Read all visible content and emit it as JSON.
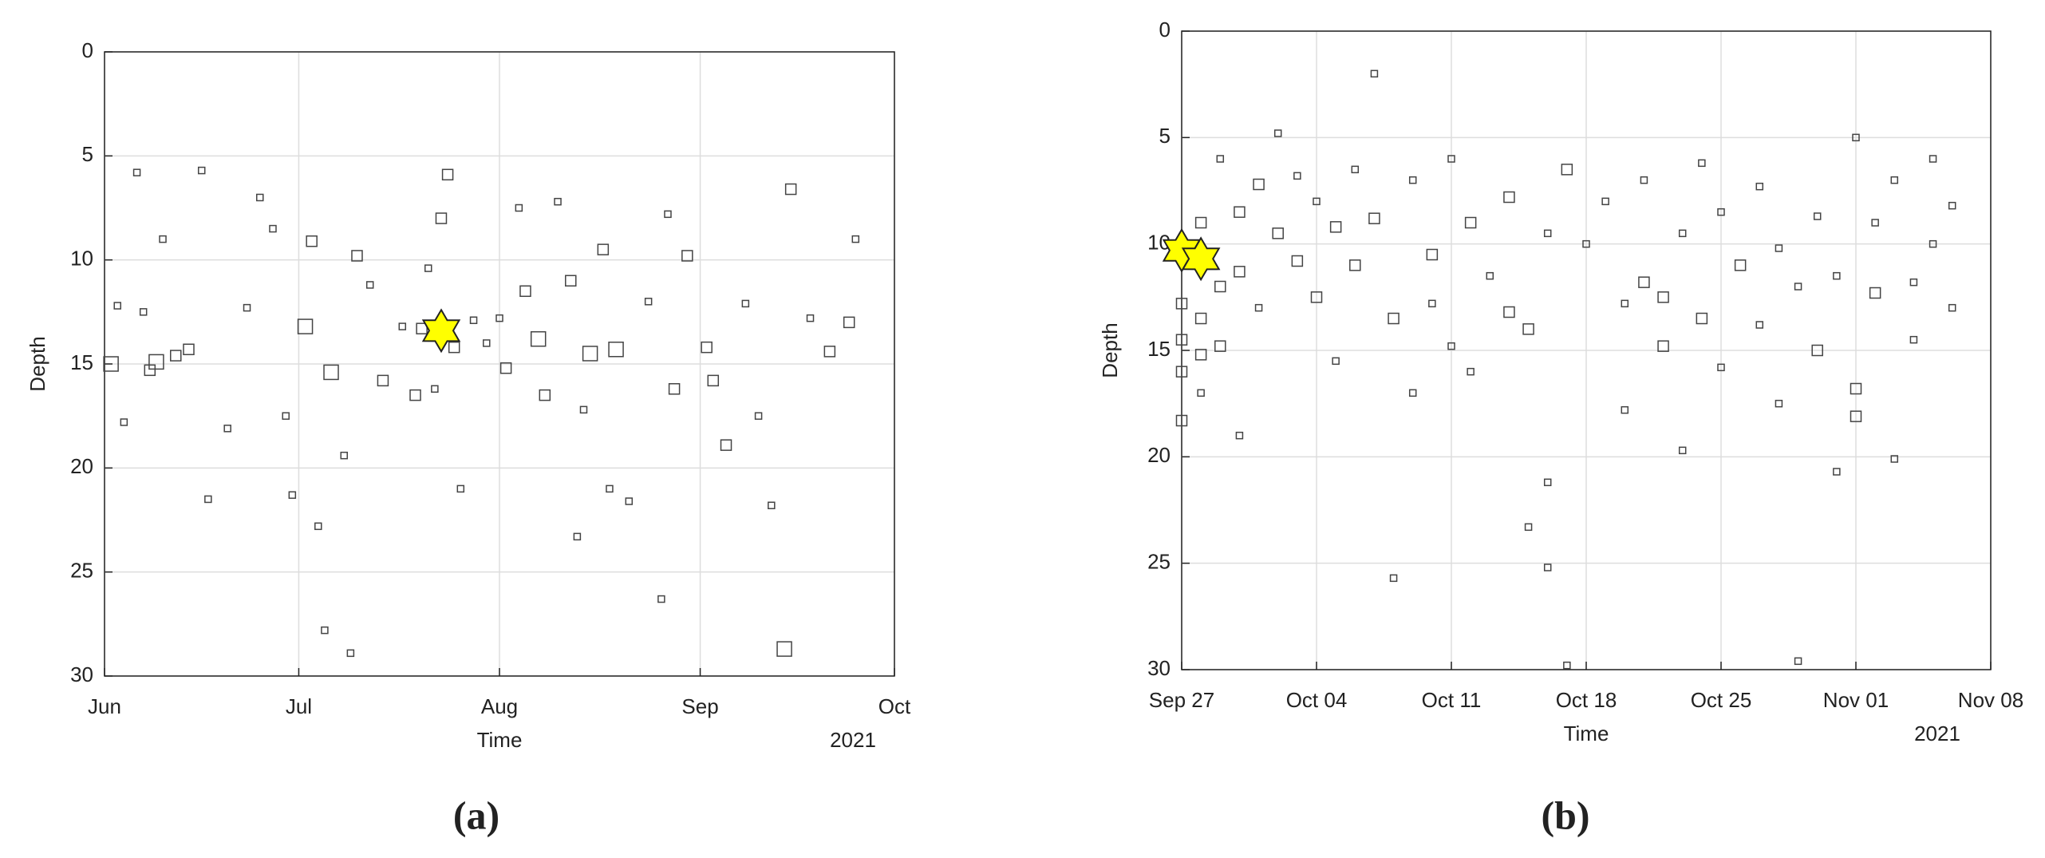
{
  "chart_data": [
    {
      "type": "scatter",
      "panel_label": "(a)",
      "xlabel": "Time",
      "ylabel": "Depth",
      "year_label": "2021",
      "xlim": [
        "2021-06-01",
        "2021-10-01"
      ],
      "xticks": [
        {
          "value": "2021-06-01",
          "label": "Jun"
        },
        {
          "value": "2021-07-01",
          "label": "Jul"
        },
        {
          "value": "2021-08-01",
          "label": "Aug"
        },
        {
          "value": "2021-09-01",
          "label": "Sep"
        },
        {
          "value": "2021-10-01",
          "label": "Oct"
        }
      ],
      "ylim": [
        0,
        30
      ],
      "yticks": [
        0,
        5,
        10,
        15,
        20,
        25,
        30
      ],
      "y_reversed": true,
      "grid": true,
      "series": [
        {
          "marker": "square",
          "color": "#444444",
          "x": [
            "2021-06-02",
            "2021-06-03",
            "2021-06-04",
            "2021-06-06",
            "2021-06-07",
            "2021-06-08",
            "2021-06-09",
            "2021-06-10",
            "2021-06-12",
            "2021-06-14",
            "2021-06-16",
            "2021-06-17",
            "2021-06-20",
            "2021-06-23",
            "2021-06-25",
            "2021-06-27",
            "2021-06-29",
            "2021-06-30",
            "2021-07-02",
            "2021-07-03",
            "2021-07-04",
            "2021-07-05",
            "2021-07-06",
            "2021-07-08",
            "2021-07-09",
            "2021-07-10",
            "2021-07-12",
            "2021-07-14",
            "2021-07-17",
            "2021-07-19",
            "2021-07-20",
            "2021-07-21",
            "2021-07-22",
            "2021-07-23",
            "2021-07-24",
            "2021-07-25",
            "2021-07-26",
            "2021-07-28",
            "2021-07-30",
            "2021-08-01",
            "2021-08-02",
            "2021-08-04",
            "2021-08-05",
            "2021-08-07",
            "2021-08-08",
            "2021-08-10",
            "2021-08-12",
            "2021-08-13",
            "2021-08-14",
            "2021-08-15",
            "2021-08-17",
            "2021-08-18",
            "2021-08-19",
            "2021-08-21",
            "2021-08-24",
            "2021-08-26",
            "2021-08-27",
            "2021-08-28",
            "2021-08-30",
            "2021-09-02",
            "2021-09-03",
            "2021-09-05",
            "2021-09-08",
            "2021-09-10",
            "2021-09-12",
            "2021-09-14",
            "2021-09-15",
            "2021-09-18",
            "2021-09-21",
            "2021-09-24",
            "2021-09-25"
          ],
          "y": [
            15.0,
            12.2,
            17.8,
            5.8,
            12.5,
            15.3,
            14.9,
            9.0,
            14.6,
            14.3,
            5.7,
            21.5,
            18.1,
            12.3,
            7.0,
            8.5,
            17.5,
            21.3,
            13.2,
            9.1,
            22.8,
            27.8,
            15.4,
            19.4,
            28.9,
            9.8,
            11.2,
            15.8,
            13.2,
            16.5,
            13.3,
            10.4,
            16.2,
            8.0,
            5.9,
            14.2,
            21.0,
            12.9,
            14.0,
            12.8,
            15.2,
            7.5,
            11.5,
            13.8,
            16.5,
            7.2,
            11.0,
            23.3,
            17.2,
            14.5,
            9.5,
            21.0,
            14.3,
            21.6,
            12.0,
            26.3,
            7.8,
            16.2,
            9.8,
            14.2,
            15.8,
            18.9,
            12.1,
            17.5,
            21.8,
            28.7,
            6.6,
            12.8,
            14.4,
            13.0,
            9.0
          ],
          "sizes": [
            3,
            1,
            1,
            1,
            1,
            2,
            3,
            1,
            2,
            2,
            1,
            1,
            1,
            1,
            1,
            1,
            1,
            1,
            3,
            2,
            1,
            1,
            3,
            1,
            1,
            2,
            1,
            2,
            1,
            2,
            2,
            1,
            1,
            2,
            2,
            2,
            1,
            1,
            1,
            1,
            2,
            1,
            2,
            3,
            2,
            1,
            2,
            1,
            1,
            3,
            2,
            1,
            3,
            1,
            1,
            1,
            1,
            2,
            2,
            2,
            2,
            2,
            1,
            1,
            1,
            3,
            2,
            1,
            2,
            2,
            1
          ]
        },
        {
          "marker": "star",
          "color": "#ffff00",
          "x": [
            "2021-07-23"
          ],
          "y": [
            13.4
          ],
          "sizes": [
            4
          ]
        }
      ]
    },
    {
      "type": "scatter",
      "panel_label": "(b)",
      "xlabel": "Time",
      "ylabel": "Depth",
      "year_label": "2021",
      "xlim": [
        "2021-09-27",
        "2021-11-08"
      ],
      "xticks": [
        {
          "value": "2021-09-27",
          "label": "Sep 27"
        },
        {
          "value": "2021-10-04",
          "label": "Oct 04"
        },
        {
          "value": "2021-10-11",
          "label": "Oct 11"
        },
        {
          "value": "2021-10-18",
          "label": "Oct 18"
        },
        {
          "value": "2021-10-25",
          "label": "Oct 25"
        },
        {
          "value": "2021-11-01",
          "label": "Nov 01"
        },
        {
          "value": "2021-11-08",
          "label": "Nov 08"
        }
      ],
      "ylim": [
        0,
        30
      ],
      "yticks": [
        0,
        5,
        10,
        15,
        20,
        25,
        30
      ],
      "y_reversed": true,
      "grid": true,
      "series": [
        {
          "marker": "square",
          "color": "#444444",
          "x": [
            "2021-09-27",
            "2021-09-27",
            "2021-09-27",
            "2021-09-27",
            "2021-09-28",
            "2021-09-28",
            "2021-09-28",
            "2021-09-28",
            "2021-09-29",
            "2021-09-29",
            "2021-09-29",
            "2021-09-30",
            "2021-09-30",
            "2021-09-30",
            "2021-10-01",
            "2021-10-01",
            "2021-10-02",
            "2021-10-02",
            "2021-10-03",
            "2021-10-03",
            "2021-10-04",
            "2021-10-04",
            "2021-10-05",
            "2021-10-05",
            "2021-10-06",
            "2021-10-06",
            "2021-10-07",
            "2021-10-07",
            "2021-10-08",
            "2021-10-08",
            "2021-10-09",
            "2021-10-09",
            "2021-10-10",
            "2021-10-10",
            "2021-10-11",
            "2021-10-11",
            "2021-10-12",
            "2021-10-12",
            "2021-10-13",
            "2021-10-14",
            "2021-10-14",
            "2021-10-15",
            "2021-10-15",
            "2021-10-16",
            "2021-10-16",
            "2021-10-16",
            "2021-10-17",
            "2021-10-17",
            "2021-10-18",
            "2021-10-19",
            "2021-10-20",
            "2021-10-20",
            "2021-10-21",
            "2021-10-21",
            "2021-10-22",
            "2021-10-22",
            "2021-10-23",
            "2021-10-23",
            "2021-10-24",
            "2021-10-24",
            "2021-10-25",
            "2021-10-25",
            "2021-10-26",
            "2021-10-27",
            "2021-10-27",
            "2021-10-28",
            "2021-10-28",
            "2021-10-29",
            "2021-10-29",
            "2021-10-30",
            "2021-10-30",
            "2021-10-31",
            "2021-10-31",
            "2021-11-01",
            "2021-11-01",
            "2021-11-01",
            "2021-11-02",
            "2021-11-02",
            "2021-11-03",
            "2021-11-03",
            "2021-11-04",
            "2021-11-04",
            "2021-11-05",
            "2021-11-05",
            "2021-11-06",
            "2021-11-06"
          ],
          "y": [
            14.5,
            16.0,
            18.3,
            12.8,
            13.5,
            15.2,
            9.0,
            17.0,
            12.0,
            14.8,
            6.0,
            8.5,
            19.0,
            11.3,
            7.2,
            13.0,
            9.5,
            4.8,
            10.8,
            6.8,
            8.0,
            12.5,
            9.2,
            15.5,
            6.5,
            11.0,
            2.0,
            8.8,
            25.7,
            13.5,
            7.0,
            17.0,
            10.5,
            12.8,
            6.0,
            14.8,
            9.0,
            16.0,
            11.5,
            7.8,
            13.2,
            14.0,
            23.3,
            9.5,
            21.2,
            25.2,
            29.8,
            6.5,
            10.0,
            8.0,
            12.8,
            17.8,
            11.8,
            7.0,
            14.8,
            12.5,
            9.5,
            19.7,
            13.5,
            6.2,
            8.5,
            15.8,
            11.0,
            7.3,
            13.8,
            10.2,
            17.5,
            29.6,
            12.0,
            8.7,
            15.0,
            20.7,
            11.5,
            16.8,
            18.1,
            5.0,
            12.3,
            9.0,
            20.1,
            7.0,
            11.8,
            14.5,
            6.0,
            10.0,
            13.0,
            8.2
          ],
          "sizes": [
            2,
            2,
            2,
            2,
            2,
            2,
            2,
            1,
            2,
            2,
            1,
            2,
            1,
            2,
            2,
            1,
            2,
            1,
            2,
            1,
            1,
            2,
            2,
            1,
            1,
            2,
            1,
            2,
            1,
            2,
            1,
            1,
            2,
            1,
            1,
            1,
            2,
            1,
            1,
            2,
            2,
            2,
            1,
            1,
            1,
            1,
            1,
            2,
            1,
            1,
            1,
            1,
            2,
            1,
            2,
            2,
            1,
            1,
            2,
            1,
            1,
            1,
            2,
            1,
            1,
            1,
            1,
            1,
            1,
            1,
            2,
            1,
            1,
            2,
            2,
            1,
            2,
            1,
            1,
            1,
            1,
            1,
            1,
            1,
            1,
            1
          ]
        },
        {
          "marker": "star",
          "color": "#ffff00",
          "x": [
            "2021-09-27",
            "2021-09-28"
          ],
          "y": [
            10.3,
            10.7
          ],
          "sizes": [
            4,
            4
          ]
        }
      ]
    }
  ]
}
